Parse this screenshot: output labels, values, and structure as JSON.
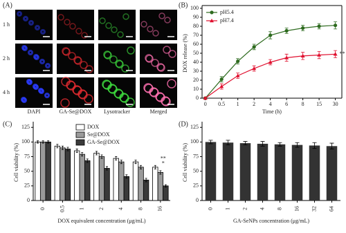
{
  "panel_a": {
    "title": "(A)",
    "rows": [
      "1 h",
      "2 h",
      "4 h"
    ],
    "columns": [
      "DAPI",
      "GA-Se@DOX",
      "Lysotracker",
      "Merged"
    ]
  },
  "chart_data": [
    {
      "type": "line",
      "title": "(B)",
      "x_label": "Time (h)",
      "y_label": "DOX release (%)",
      "categories": [
        "0",
        "0.5",
        "1",
        "2",
        "4",
        "6",
        "8",
        "15",
        "30"
      ],
      "series": [
        {
          "name": "pH5.4",
          "color": "#2e6b1f",
          "marker": "circle",
          "values": [
            0,
            21,
            41,
            57,
            70,
            75,
            78,
            80,
            81
          ],
          "errors": [
            1,
            3,
            3,
            3,
            4,
            3,
            3,
            3,
            4
          ]
        },
        {
          "name": "pH7.4",
          "color": "#e0102f",
          "marker": "triangle",
          "values": [
            0,
            13,
            25,
            33,
            40,
            45,
            47,
            48,
            49
          ],
          "errors": [
            1,
            3,
            3,
            3,
            3,
            4,
            4,
            4,
            4
          ]
        }
      ],
      "ylim": [
        0,
        100
      ],
      "yticks": [
        0,
        10,
        20,
        30,
        40,
        50,
        60,
        70,
        80,
        90,
        100
      ],
      "annotations": [
        "**"
      ],
      "legend": "upper-left"
    },
    {
      "type": "grouped_bar",
      "title": "(C)",
      "x_label": "DOX equivalent concentration (μg/mL)",
      "y_label": "Cell viability (%)",
      "categories": [
        "0",
        "0.5",
        "1",
        "2",
        "4",
        "8",
        "16"
      ],
      "series": [
        {
          "name": "DOX",
          "color": "#ffffff",
          "values": [
            100,
            93,
            85,
            81,
            72,
            66,
            57
          ],
          "errors": [
            2,
            3,
            3,
            3,
            3,
            3,
            3
          ]
        },
        {
          "name": "Se@DOX",
          "color": "#9a9a9a",
          "values": [
            100,
            90,
            79,
            75,
            66,
            57,
            48
          ],
          "errors": [
            2,
            3,
            3,
            3,
            3,
            3,
            3
          ]
        },
        {
          "name": "GA-Se@DOX",
          "color": "#3a3a3a",
          "values": [
            100,
            88,
            68,
            55,
            41,
            35,
            25
          ],
          "errors": [
            2,
            3,
            3,
            3,
            3,
            3,
            2
          ]
        }
      ],
      "ylim": [
        0,
        130
      ],
      "yticks": [
        0,
        25,
        50,
        75,
        100,
        125
      ],
      "annotations": [
        "**",
        "*"
      ],
      "legend": "upper-center"
    },
    {
      "type": "bar",
      "title": "(D)",
      "x_label": "GA-SeNPs concentration (μg/mL)",
      "y_label": "Cell viability (%)",
      "categories": [
        "0",
        "1",
        "2",
        "4",
        "8",
        "16",
        "32",
        "64"
      ],
      "color": "#333333",
      "values": [
        100,
        99,
        98,
        97,
        96,
        95,
        94,
        93
      ],
      "errors": [
        3,
        4,
        3,
        4,
        3,
        4,
        5,
        5
      ],
      "ylim": [
        0,
        130
      ],
      "yticks": [
        0,
        25,
        50,
        75,
        100,
        125
      ]
    }
  ]
}
